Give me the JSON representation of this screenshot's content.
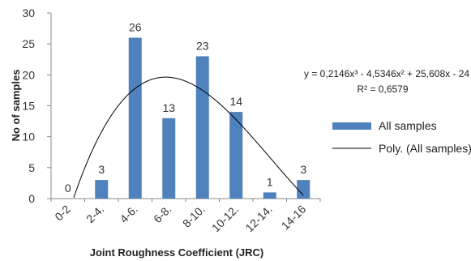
{
  "chart_data": {
    "type": "bar",
    "categories": [
      "0-2",
      "2-4.",
      "4-6.",
      "6-8.",
      "8-10.",
      "10-12.",
      "12-14.",
      "14-16"
    ],
    "series": [
      {
        "name": "All samples",
        "values": [
          0,
          3,
          26,
          13,
          23,
          14,
          1,
          3
        ],
        "color": "#4f81bd"
      }
    ],
    "trendline": {
      "name": "Poly. (All samples)",
      "type": "polynomial",
      "order": 3,
      "coefficients": [
        0.2146,
        -4.5346,
        25.608,
        -24
      ],
      "color": "#000000"
    },
    "equation": "y = 0,2146x³ - 4,5346x² + 25,608x - 24",
    "r_squared": "R² = 0,6579",
    "xlabel": "Joint Roughness Coefficient (JRC)",
    "ylabel": "No of samples",
    "ylim": [
      0,
      30
    ],
    "yticks": [
      0,
      5,
      10,
      15,
      20,
      25,
      30
    ],
    "grid": false,
    "legend_position": "right"
  }
}
